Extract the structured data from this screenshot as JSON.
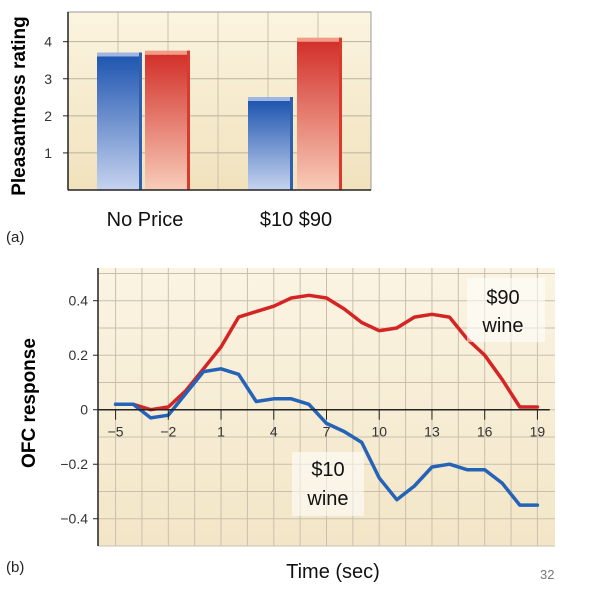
{
  "chart_data": [
    {
      "type": "bar",
      "panel_label": "(a)",
      "ylabel": "Pleasantness rating",
      "ylim": [
        0,
        4.8
      ],
      "yticks": [
        1,
        2,
        3,
        4
      ],
      "groups": [
        {
          "label": "No Price",
          "bars": [
            {
              "color": "#2f5faf",
              "value": 3.6
            },
            {
              "color": "#d93a2e",
              "value": 3.65
            }
          ]
        },
        {
          "label": "$10  $90",
          "bars": [
            {
              "color": "#2f5faf",
              "value": 2.4
            },
            {
              "color": "#d93a2e",
              "value": 4.0
            }
          ]
        }
      ],
      "grid": true
    },
    {
      "type": "line",
      "panel_label": "(b)",
      "ylabel": "OFC response",
      "xlabel": "Time (sec)",
      "xlim": [
        -6,
        20
      ],
      "ylim": [
        -0.5,
        0.52
      ],
      "xticks": [
        -5,
        -2,
        1,
        4,
        7,
        10,
        13,
        16,
        19
      ],
      "yticks": [
        0.4,
        0.2,
        0,
        -0.2,
        -0.4
      ],
      "ytick_labels": [
        "0.4",
        "0.2",
        "0",
        "−0.2",
        "−0.4"
      ],
      "xtick_labels": [
        "−5",
        "−2",
        "1",
        "4",
        "7",
        "10",
        "13",
        "16",
        "19"
      ],
      "grid": true,
      "series": [
        {
          "label_line1": "$90",
          "label_line2": "wine",
          "color": "#d42424",
          "points": [
            [
              -5,
              0.02
            ],
            [
              -4,
              0.02
            ],
            [
              -3,
              0.0
            ],
            [
              -2,
              0.01
            ],
            [
              -1,
              0.07
            ],
            [
              0,
              0.15
            ],
            [
              1,
              0.23
            ],
            [
              2,
              0.34
            ],
            [
              3,
              0.36
            ],
            [
              4,
              0.38
            ],
            [
              5,
              0.41
            ],
            [
              6,
              0.42
            ],
            [
              7,
              0.41
            ],
            [
              8,
              0.37
            ],
            [
              9,
              0.32
            ],
            [
              10,
              0.29
            ],
            [
              11,
              0.3
            ],
            [
              12,
              0.34
            ],
            [
              13,
              0.35
            ],
            [
              14,
              0.34
            ],
            [
              15,
              0.26
            ],
            [
              16,
              0.2
            ],
            [
              17,
              0.11
            ],
            [
              18,
              0.01
            ],
            [
              19,
              0.01
            ]
          ]
        },
        {
          "label_line1": "$10",
          "label_line2": "wine",
          "color": "#2563b8",
          "points": [
            [
              -5,
              0.02
            ],
            [
              -4,
              0.02
            ],
            [
              -3,
              -0.03
            ],
            [
              -2,
              -0.02
            ],
            [
              -1,
              0.06
            ],
            [
              0,
              0.14
            ],
            [
              1,
              0.15
            ],
            [
              2,
              0.13
            ],
            [
              3,
              0.03
            ],
            [
              4,
              0.04
            ],
            [
              5,
              0.04
            ],
            [
              6,
              0.02
            ],
            [
              7,
              -0.05
            ],
            [
              8,
              -0.08
            ],
            [
              9,
              -0.12
            ],
            [
              10,
              -0.25
            ],
            [
              11,
              -0.33
            ],
            [
              12,
              -0.28
            ],
            [
              13,
              -0.21
            ],
            [
              14,
              -0.2
            ],
            [
              15,
              -0.22
            ],
            [
              16,
              -0.22
            ],
            [
              17,
              -0.27
            ],
            [
              18,
              -0.35
            ],
            [
              19,
              -0.35
            ]
          ]
        }
      ]
    }
  ],
  "slide_number": "32"
}
